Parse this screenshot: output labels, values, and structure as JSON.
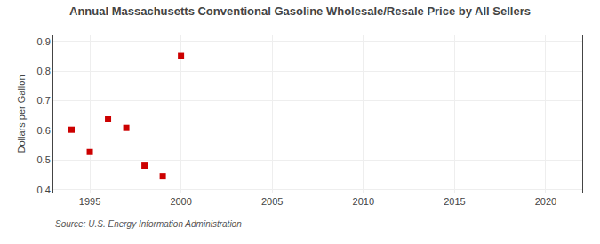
{
  "chart_data": {
    "type": "scatter",
    "title": "Annual Massachusetts Conventional Gasoline Wholesale/Resale Price by All Sellers",
    "ylabel": "Dollars per Gallon",
    "annotations": [
      "Source: U.S. Energy Information Administration"
    ],
    "x": [
      1994,
      1995,
      1996,
      1997,
      1998,
      1999,
      2000
    ],
    "values": [
      0.602,
      0.527,
      0.637,
      0.608,
      0.481,
      0.445,
      0.851
    ],
    "color": "#cc0000",
    "marker": "square",
    "xlim": [
      1993,
      2022
    ],
    "ylim": [
      0.39,
      0.92
    ],
    "xticks": [
      1995,
      2000,
      2005,
      2010,
      2015,
      2020
    ],
    "yticks": [
      0.4,
      0.5,
      0.6,
      0.7,
      0.8,
      0.9
    ],
    "grid": true
  }
}
